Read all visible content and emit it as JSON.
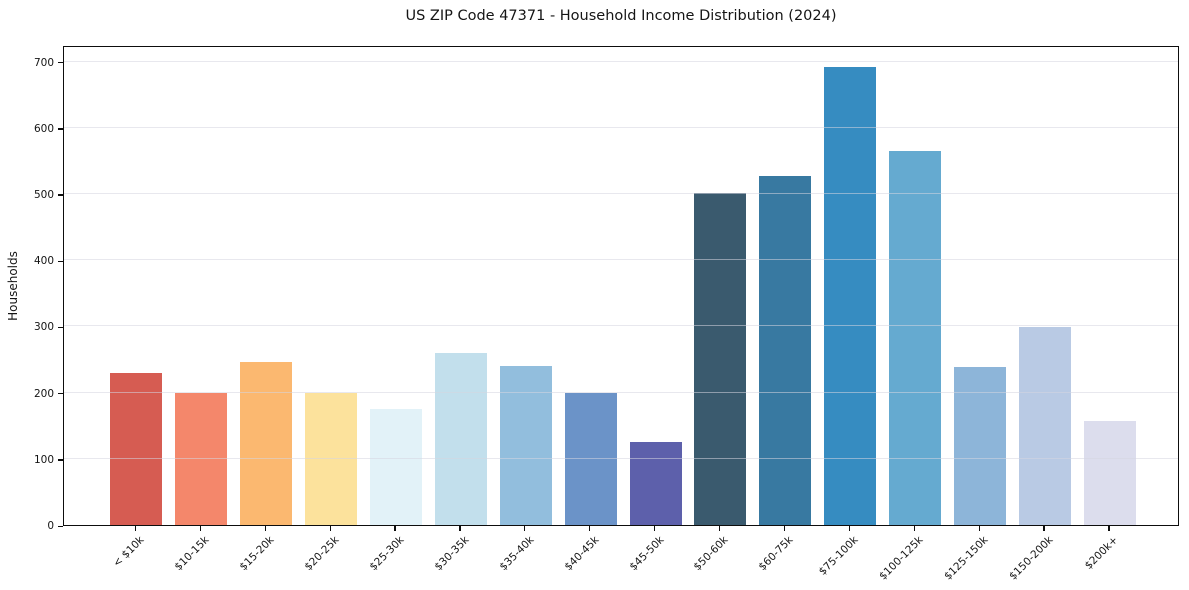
{
  "chart_data": {
    "type": "bar",
    "title": "US ZIP Code 47371 - Household Income Distribution (2024)",
    "xlabel": "",
    "ylabel": "Households",
    "ylim": [
      0,
      725
    ],
    "yticks": [
      0,
      100,
      200,
      300,
      400,
      500,
      600,
      700
    ],
    "grid": "horizontal",
    "legend": "none",
    "categories": [
      "< $10k",
      "$10-15k",
      "$15-20k",
      "$20-25k",
      "$25-30k",
      "$30-35k",
      "$35-40k",
      "$40-45k",
      "$45-50k",
      "$50-60k",
      "$60-75k",
      "$75-100k",
      "$100-125k",
      "$125-150k",
      "$150-200k",
      "$200k+"
    ],
    "values": [
      230,
      199,
      246,
      200,
      175,
      260,
      240,
      199,
      126,
      501,
      527,
      692,
      565,
      238,
      299,
      157
    ],
    "bar_colors": [
      "#d65c52",
      "#f4876b",
      "#fbb870",
      "#fce29c",
      "#e2f2f8",
      "#c2dfec",
      "#92bedd",
      "#6b93c8",
      "#5d60ab",
      "#3a5a6e",
      "#3879a1",
      "#368cc1",
      "#65aad0",
      "#8db5d9",
      "#b9cae4",
      "#dcdded"
    ],
    "background_color": "#ffffff",
    "frame_color": "#0d0d0d",
    "gridline_color": "#e9e9ee"
  }
}
